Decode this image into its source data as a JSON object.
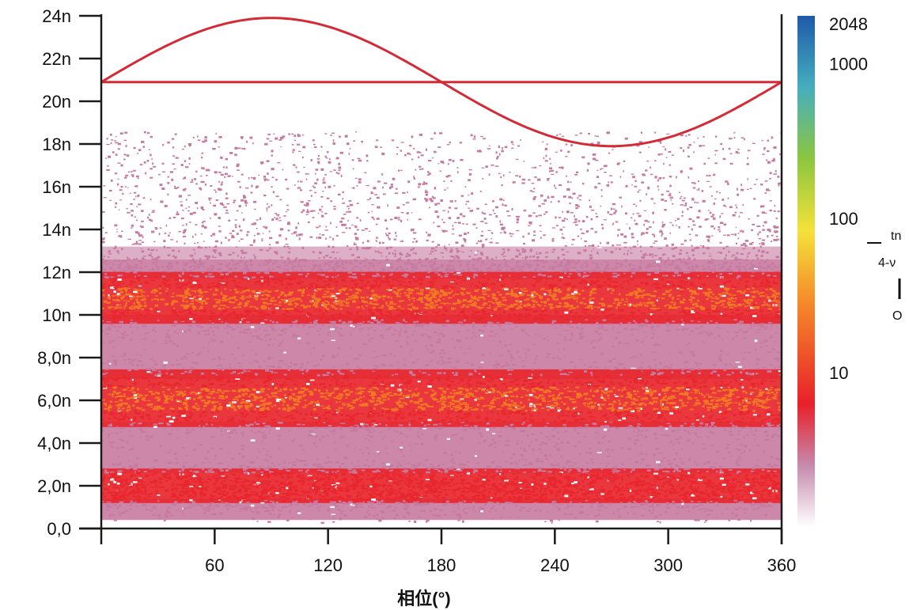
{
  "chart_data": {
    "type": "scatter",
    "subtype": "phase-resolved partial discharge density plot",
    "xlabel": "相位(°)",
    "ylabel": "",
    "x_ticks": [
      "60",
      "120",
      "180",
      "240",
      "300",
      "360"
    ],
    "y_ticks": [
      "0,0",
      "2,0n",
      "4,0n",
      "6,0n",
      "8,0n",
      "10n",
      "12n",
      "14n",
      "16n",
      "18n",
      "20n",
      "22n",
      "24n"
    ],
    "xlim": [
      0,
      360
    ],
    "ylim": [
      0,
      24
    ],
    "y_unit_prefix": "n",
    "reference_sine": {
      "center": 20.9,
      "amplitude": 3.0,
      "period": 360,
      "baseline": 20.9
    },
    "bands": [
      {
        "name": "band-1",
        "y_center": 2.0,
        "y_halfwidth": 0.6,
        "level": "high"
      },
      {
        "name": "band-2",
        "y_center": 6.1,
        "y_halfwidth": 1.0,
        "level": "very-high"
      },
      {
        "name": "band-3",
        "y_center": 10.8,
        "y_halfwidth": 0.9,
        "level": "very-high"
      }
    ],
    "sparse_range": [
      0.3,
      18.6
    ],
    "colorbar": {
      "labels": [
        "2048",
        "1000",
        "100",
        "10"
      ],
      "label_values": [
        2048,
        1000,
        100,
        10
      ],
      "max": 2048,
      "min": 1,
      "scale": "log",
      "side_text": [
        "tn",
        "4-ν",
        "O"
      ]
    },
    "colors": {
      "sine": "#d42a36",
      "axis": "#1a1a1a",
      "low": "#c77aa0",
      "mid": "#e8262e",
      "high": "#f07a24",
      "colorbar_stops": [
        "#ffffff",
        "#c68aad",
        "#e8202a",
        "#f58a2a",
        "#f4e23a",
        "#8cc63f",
        "#46aebf",
        "#1e5aa8"
      ]
    }
  }
}
